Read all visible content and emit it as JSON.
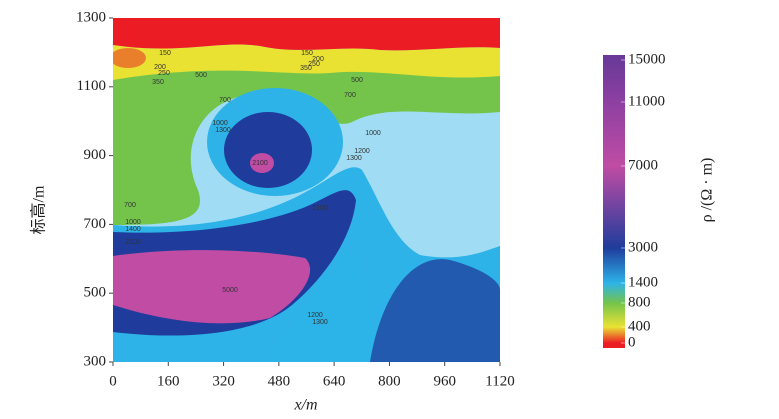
{
  "chart_data": {
    "type": "contour",
    "xlabel": "x/m",
    "ylabel": "标高/m",
    "colorbar_label": "ρ /(Ω · m)",
    "xlim": [
      0,
      1120
    ],
    "xticks": [
      0,
      160,
      320,
      480,
      640,
      800,
      960,
      1120
    ],
    "ylim": [
      300,
      1300
    ],
    "yticks": [
      300,
      500,
      700,
      900,
      1100,
      1300
    ],
    "colorbar": {
      "ticks": [
        0,
        400,
        800,
        1400,
        3000,
        7000,
        11000,
        15000
      ],
      "colors": [
        "#ec1c24",
        "#e9e233",
        "#74c44c",
        "#2db3e8",
        "#1f3c9c",
        "#c04ca4",
        "#8d40a2",
        "#6b3a98"
      ]
    },
    "contour_labels": [
      150,
      200,
      250,
      350,
      150,
      200,
      250,
      350,
      500,
      500,
      700,
      700,
      1000,
      1300,
      1000,
      1200,
      1300,
      2100,
      700,
      1000,
      1400,
      2100,
      2100,
      5000,
      1200,
      1300
    ]
  }
}
